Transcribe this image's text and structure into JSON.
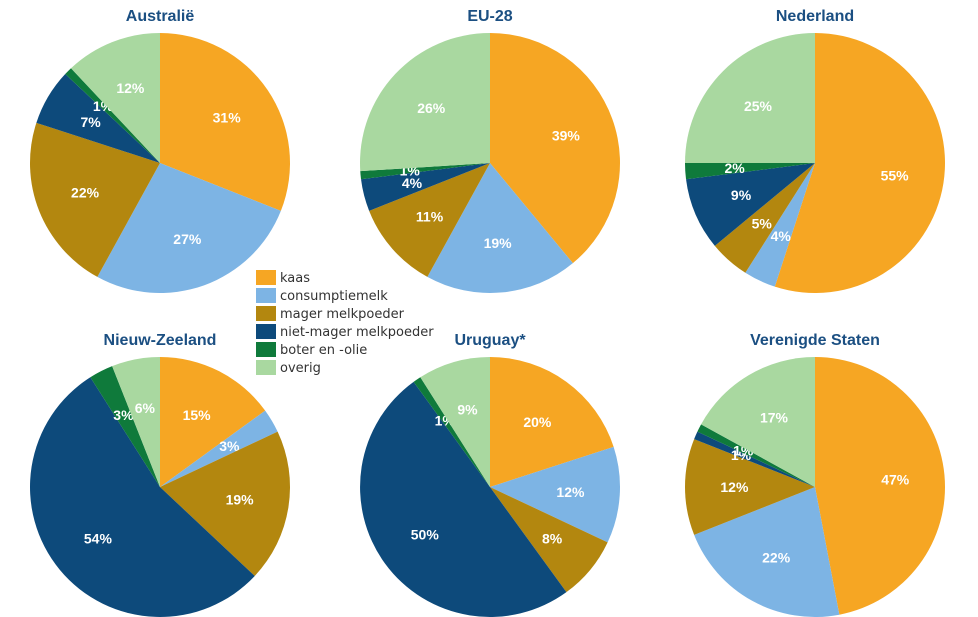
{
  "legend": {
    "categories": [
      "kaas",
      "consumptiemelk",
      "mager melkpoeder",
      "niet-mager melkpoeder",
      "boter en -olie",
      "overig"
    ],
    "colors": [
      "#f6a623",
      "#7db4e4",
      "#b3870f",
      "#0d4a7b",
      "#0f7a3b",
      "#a9d8a0"
    ]
  },
  "chart_data": [
    {
      "type": "pie",
      "title": "Australië",
      "values": [
        31,
        27,
        22,
        7,
        1,
        12
      ],
      "value_labels": [
        "31%",
        "27%",
        "22%",
        "7%",
        "1%",
        "12%"
      ]
    },
    {
      "type": "pie",
      "title": "EU-28",
      "values": [
        39,
        19,
        11,
        4,
        1,
        26
      ],
      "value_labels": [
        "39%",
        "19%",
        "11%",
        "4%",
        "1%",
        "26%"
      ]
    },
    {
      "type": "pie",
      "title": "Nederland",
      "values": [
        55,
        4,
        5,
        9,
        2,
        25
      ],
      "value_labels": [
        "55%",
        "4%",
        "5%",
        "9%",
        "2%",
        "25%"
      ]
    },
    {
      "type": "pie",
      "title": "Nieuw-Zeeland",
      "values": [
        15,
        3,
        19,
        54,
        3,
        6
      ],
      "value_labels": [
        "15%",
        "3%",
        "19%",
        "54%",
        "3%",
        "6%"
      ]
    },
    {
      "type": "pie",
      "title": "Uruguay*",
      "values": [
        20,
        12,
        8,
        50,
        1,
        9
      ],
      "value_labels": [
        "20%",
        "12%",
        "8%",
        "50%",
        "1%",
        "9%"
      ]
    },
    {
      "type": "pie",
      "title": "Verenigde Staten",
      "values": [
        47,
        22,
        12,
        1,
        1,
        17
      ],
      "value_labels": [
        "47%",
        "22%",
        "12%",
        "1%",
        "1%",
        "17%"
      ]
    }
  ]
}
